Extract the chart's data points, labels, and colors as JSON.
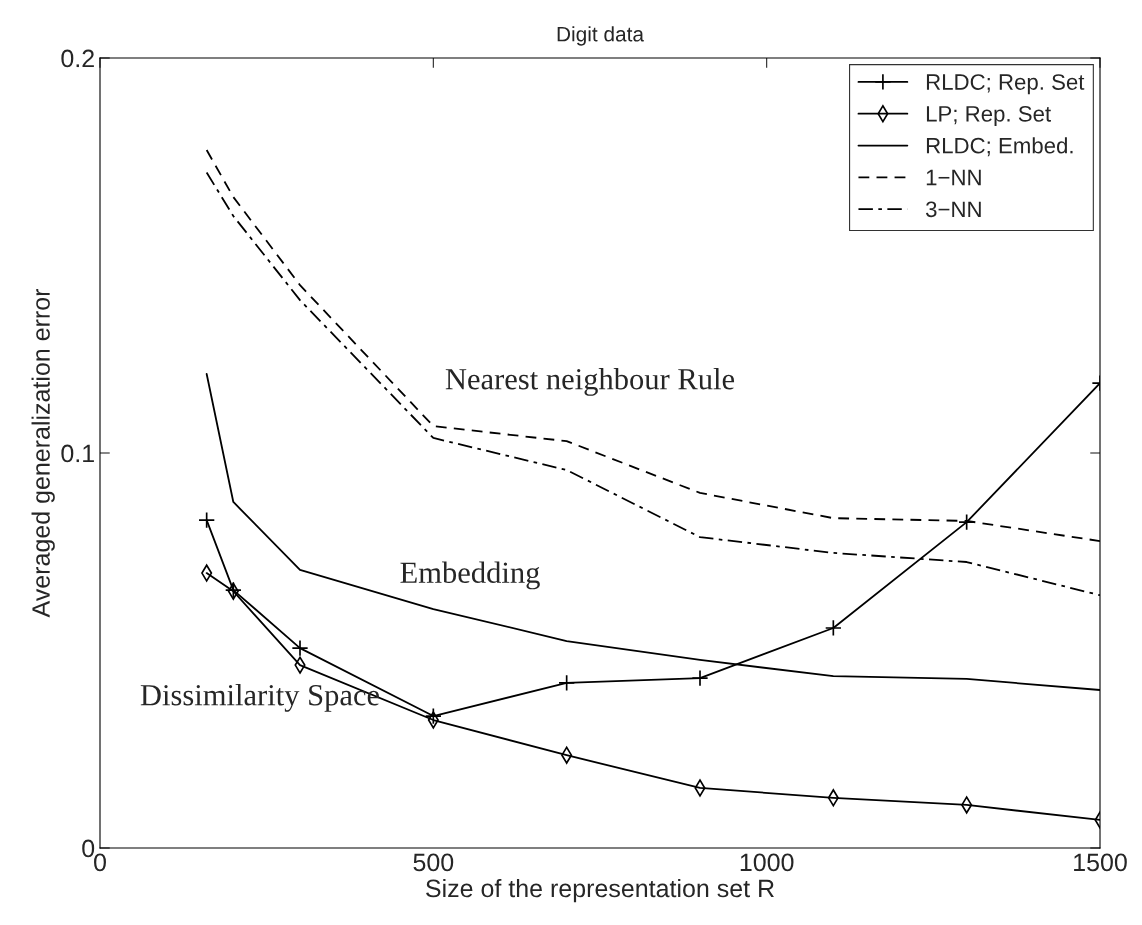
{
  "chart_data": {
    "type": "line",
    "title": "Digit data",
    "xlabel": "Size of the representation set R",
    "ylabel": "Averaged generalization error",
    "x": [
      160,
      200,
      300,
      500,
      700,
      900,
      1100,
      1300,
      1500
    ],
    "series": [
      {
        "name": "RLDC; Rep. Set",
        "color": "#000000",
        "marker": "cross",
        "line_style": "solid",
        "values": [
          0.083,
          0.0653,
          0.0506,
          0.0334,
          0.0418,
          0.043,
          0.0557,
          0.0825,
          0.1177
        ]
      },
      {
        "name": "LP; Rep. Set",
        "color": "#000000",
        "marker": "diamond",
        "line_style": "solid",
        "values": [
          0.0696,
          0.065,
          0.0463,
          0.0324,
          0.0235,
          0.0152,
          0.0127,
          0.0109,
          0.0071
        ]
      },
      {
        "name": "RLDC; Embed.",
        "color": "#000000",
        "marker": "none",
        "line_style": "solid",
        "values": [
          0.12,
          0.0876,
          0.0704,
          0.0605,
          0.0524,
          0.0476,
          0.0435,
          0.0428,
          0.04
        ]
      },
      {
        "name": "1−NN",
        "color": "#000000",
        "marker": "none",
        "line_style": "dashed",
        "values": [
          0.1767,
          0.1648,
          0.1425,
          0.1068,
          0.103,
          0.0899,
          0.0835,
          0.0828,
          0.0777
        ]
      },
      {
        "name": "3−NN",
        "color": "#000000",
        "marker": "none",
        "line_style": "dashdot",
        "values": [
          0.171,
          0.16,
          0.1387,
          0.1038,
          0.0957,
          0.0787,
          0.0747,
          0.0724,
          0.064
        ]
      }
    ],
    "xlim": [
      0,
      1500
    ],
    "ylim": [
      0,
      0.2
    ],
    "xticks": [
      0,
      500,
      1000,
      1500
    ],
    "yticks": [
      0,
      0.1,
      0.2
    ],
    "grid": false,
    "legend": "top right",
    "annotations": [
      "Nearest neighbour Rule",
      "Embedding",
      "Dissimilarity Space"
    ]
  }
}
